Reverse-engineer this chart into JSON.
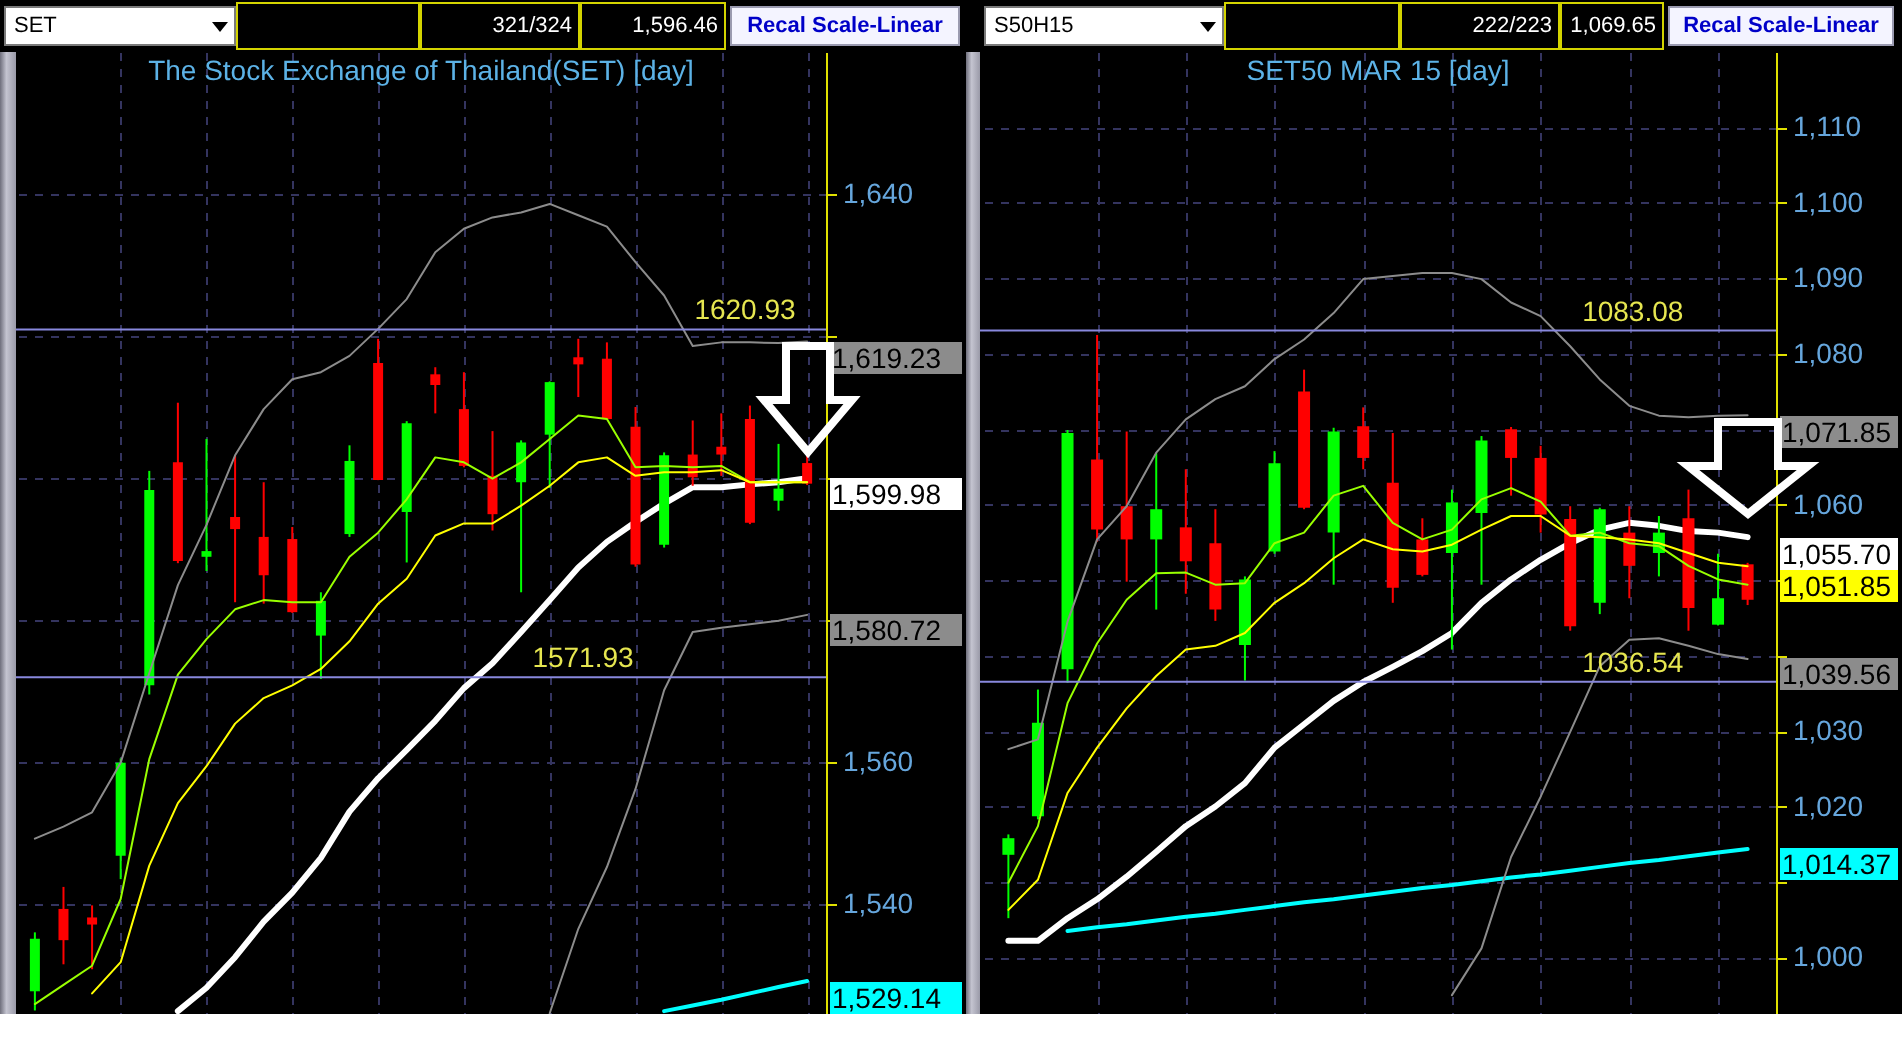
{
  "chart_data": [
    {
      "type": "candlestick",
      "title": "The Stock Exchange of Thailand(SET) [day]",
      "annotations": [
        "SET",
        "321/324",
        "1,596.46",
        "Recal Scale-Linear"
      ],
      "categories": [
        null,
        null,
        null,
        null,
        null,
        null,
        null,
        null,
        null,
        null,
        null,
        null,
        null,
        null,
        null,
        null,
        null,
        null,
        null,
        null,
        null,
        null,
        null,
        null,
        null,
        null,
        null,
        null
      ],
      "ohlc": [
        [
          1527.7,
          1536.0,
          1525.0,
          1535.1
        ],
        [
          1539.3,
          1542.4,
          1531.5,
          1534.9
        ],
        [
          1538.1,
          1539.8,
          1530.8,
          1537.1
        ],
        [
          1546.8,
          1560.5,
          1543.5,
          1559.9
        ],
        [
          1570.8,
          1601.0,
          1569.5,
          1598.3
        ],
        [
          1602.2,
          1610.6,
          1588.0,
          1588.3
        ],
        [
          1588.9,
          1605.5,
          1586.9,
          1589.7
        ],
        [
          1594.5,
          1603.2,
          1582.5,
          1592.8
        ],
        [
          1591.7,
          1599.4,
          1582.3,
          1586.3
        ],
        [
          1591.4,
          1593.1,
          1581.0,
          1581.1
        ],
        [
          1577.8,
          1583.9,
          1571.7,
          1582.7
        ],
        [
          1592.1,
          1604.6,
          1591.7,
          1602.4
        ],
        [
          1616.2,
          1619.6,
          1599.7,
          1599.7
        ],
        [
          1595.2,
          1608.0,
          1588.1,
          1607.7
        ],
        [
          1614.6,
          1615.6,
          1609.1,
          1613.1
        ],
        [
          1609.7,
          1614.9,
          1601.5,
          1601.7
        ],
        [
          1600.3,
          1606.6,
          1592.6,
          1594.9
        ],
        [
          1599.4,
          1605.3,
          1583.9,
          1605.0
        ],
        [
          1606.1,
          1613.6,
          1598.6,
          1613.5
        ],
        [
          1617.0,
          1619.6,
          1611.4,
          1616.0
        ],
        [
          1616.8,
          1619.1,
          1608.3,
          1608.3
        ],
        [
          1607.2,
          1610.0,
          1587.5,
          1587.8
        ],
        [
          1590.6,
          1603.6,
          1590.2,
          1603.2
        ],
        [
          1603.3,
          1608.1,
          1598.9,
          1600.1
        ],
        [
          1604.4,
          1609.1,
          1600.3,
          1603.3
        ],
        [
          1608.3,
          1610.2,
          1593.5,
          1593.7
        ],
        [
          1596.8,
          1604.8,
          1595.4,
          1598.5
        ],
        [
          1602.1,
          1603.2,
          1599.0,
          1599.2
        ]
      ],
      "colors": [
        "#00ff00",
        "#ff0000",
        "#ff0000",
        "#00ff00",
        "#00ff00",
        "#ff0000",
        "#00ff00",
        "#ff0000",
        "#ff0000",
        "#ff0000",
        "#00ff00",
        "#00ff00",
        "#ff0000",
        "#00ff00",
        "#ff0000",
        "#ff0000",
        "#ff0000",
        "#00ff00",
        "#00ff00",
        "#ff0000",
        "#ff0000",
        "#ff0000",
        "#00ff00",
        "#ff0000",
        "#ff0000",
        "#ff0000",
        "#00ff00",
        "#ff0000"
      ],
      "series": [
        {
          "type": "line",
          "color": "#8c8c8c",
          "values": [
            1549.2,
            1550.9,
            1552.9,
            1559.9,
            1572.5,
            1584.9,
            1593.4,
            1603.2,
            1609.7,
            1613.9,
            1614.9,
            1617.2,
            1621.0,
            1625.2,
            1631.8,
            1635.1,
            1636.7,
            1637.4,
            1638.6,
            1637.0,
            1635.4,
            1630.4,
            1625.7,
            1618.6,
            1619.1,
            1619.1,
            1619.0,
            1619.23
          ],
          "value_labels": [
            null,
            null,
            null,
            null,
            null,
            null,
            null,
            null,
            null,
            null,
            null,
            null,
            null,
            null,
            null,
            null,
            null,
            null,
            null,
            null,
            null,
            null,
            null,
            null,
            null,
            null,
            null,
            "1,619.23"
          ]
        },
        {
          "type": "line",
          "color": "#8c8c8c",
          "values": [
            null,
            null,
            null,
            null,
            null,
            null,
            null,
            null,
            null,
            null,
            null,
            null,
            null,
            null,
            null,
            null,
            null,
            null,
            1524.6,
            1536.5,
            1545.2,
            1556.2,
            1570.1,
            1578.3,
            1578.9,
            1579.4,
            1579.9,
            1580.72
          ],
          "value_labels": [
            null,
            null,
            null,
            null,
            null,
            null,
            null,
            null,
            null,
            null,
            null,
            null,
            null,
            null,
            null,
            null,
            null,
            null,
            null,
            null,
            null,
            null,
            null,
            null,
            null,
            null,
            null,
            "1,580.72"
          ]
        },
        {
          "type": "line",
          "color": "#99ff00",
          "values": [
            1525.9,
            1528.6,
            1531.3,
            1540.7,
            1560.4,
            1572.3,
            1577.3,
            1581.5,
            1582.8,
            1582.5,
            1582.5,
            1588.9,
            1592.3,
            1597.0,
            1602.9,
            1602.2,
            1599.9,
            1602.2,
            1605.5,
            1608.8,
            1608.3,
            1601.5,
            1601.7,
            1601.5,
            1601.7,
            1599.4,
            1599.4,
            1599.4
          ]
        },
        {
          "type": "line",
          "color": "#ffff00",
          "values": [
            null,
            null,
            1527.4,
            1531.8,
            1545.4,
            1554.2,
            1559.4,
            1565.4,
            1569.0,
            1570.8,
            1573.1,
            1577.0,
            1582.3,
            1585.8,
            1591.9,
            1593.6,
            1593.6,
            1596.1,
            1598.9,
            1602.2,
            1602.9,
            1600.3,
            1600.8,
            1600.8,
            1601.1,
            1599.4,
            1599.4,
            1599.4
          ]
        },
        {
          "type": "line",
          "color": "#ffffff",
          "values": [
            null,
            null,
            null,
            null,
            null,
            1524.9,
            1528.2,
            1532.5,
            1537.5,
            1541.6,
            1546.5,
            1553.0,
            1557.7,
            1561.7,
            1565.8,
            1570.4,
            1573.9,
            1578.3,
            1582.8,
            1587.4,
            1591.0,
            1593.8,
            1596.4,
            1598.7,
            1598.7,
            1599.1,
            1599.4,
            1599.98
          ],
          "value_labels": [
            null,
            null,
            null,
            null,
            null,
            null,
            null,
            null,
            null,
            null,
            null,
            null,
            null,
            null,
            null,
            null,
            null,
            null,
            null,
            null,
            null,
            null,
            null,
            null,
            null,
            null,
            null,
            "1,599.98"
          ]
        },
        {
          "type": "line",
          "color": "#00ffff",
          "values": [
            null,
            null,
            null,
            null,
            null,
            null,
            null,
            null,
            null,
            null,
            null,
            null,
            null,
            null,
            null,
            null,
            null,
            null,
            null,
            null,
            null,
            null,
            1524.9,
            1525.7,
            1526.5,
            1527.4,
            1528.3,
            1529.14
          ],
          "value_labels": [
            null,
            null,
            null,
            null,
            null,
            null,
            null,
            null,
            null,
            null,
            null,
            null,
            null,
            null,
            null,
            null,
            null,
            null,
            null,
            null,
            null,
            null,
            null,
            null,
            null,
            null,
            null,
            "1,529.14"
          ]
        }
      ],
      "ylim": [
        1524.5,
        1660
      ],
      "yticks": [
        {
          "value": 1540,
          "label": "1,540"
        },
        {
          "value": 1560,
          "label": "1,560"
        },
        {
          "value": 1580,
          "label": null
        },
        {
          "value": 1600,
          "label": null
        },
        {
          "value": 1620,
          "label": null
        },
        {
          "value": 1640,
          "label": "1,640"
        }
      ],
      "grid": true,
      "ref_lines": [
        {
          "axis": "y",
          "value": 1620.93,
          "label": "1620.93",
          "color": "#8888dd"
        },
        {
          "axis": "y",
          "value": 1571.93,
          "label": "1571.93",
          "color": "#8888dd"
        }
      ]
    },
    {
      "type": "candlestick",
      "title": "SET50 MAR 15  [day]",
      "annotations": [
        "S50H15",
        "222/223",
        "1,069.65",
        "Recal Scale-Linear"
      ],
      "categories": [
        null,
        null,
        null,
        null,
        null,
        null,
        null,
        null,
        null,
        null,
        null,
        null,
        null,
        null,
        null,
        null,
        null,
        null,
        null,
        null,
        null,
        null,
        null,
        null,
        null,
        null
      ],
      "ohlc": [
        [
          1013.6,
          1016.3,
          1005.2,
          1015.8
        ],
        [
          1018.7,
          1035.5,
          1018.3,
          1031.1
        ],
        [
          1038.2,
          1069.9,
          1036.4,
          1069.5
        ],
        [
          1066.0,
          1082.5,
          1055.1,
          1056.7
        ],
        [
          1059.8,
          1069.7,
          1049.8,
          1055.4
        ],
        [
          1055.4,
          1066.9,
          1046.1,
          1059.4
        ],
        [
          1057.0,
          1064.7,
          1048.2,
          1052.5
        ],
        [
          1054.9,
          1059.4,
          1044.6,
          1046.1
        ],
        [
          1041.4,
          1050.5,
          1036.7,
          1050.1
        ],
        [
          1053.8,
          1067.1,
          1053.5,
          1065.5
        ],
        [
          1075.0,
          1077.9,
          1059.4,
          1059.6
        ],
        [
          1056.3,
          1070.2,
          1049.4,
          1069.7
        ],
        [
          1070.4,
          1072.9,
          1064.7,
          1066.2
        ],
        [
          1062.9,
          1069.5,
          1047.0,
          1049.0
        ],
        [
          1055.4,
          1058.2,
          1050.5,
          1050.7
        ],
        [
          1053.6,
          1062.0,
          1040.8,
          1060.3
        ],
        [
          1058.9,
          1069.1,
          1049.4,
          1068.5
        ],
        [
          1070.0,
          1070.3,
          1061.2,
          1066.2
        ],
        [
          1066.2,
          1067.8,
          1056.3,
          1058.7
        ],
        [
          1058.1,
          1059.8,
          1043.3,
          1043.9
        ],
        [
          1047.0,
          1059.6,
          1045.5,
          1059.4
        ],
        [
          1056.3,
          1059.8,
          1047.6,
          1051.9
        ],
        [
          1053.6,
          1058.5,
          1050.5,
          1056.3
        ],
        [
          1058.2,
          1062.0,
          1043.3,
          1046.3
        ],
        [
          1044.1,
          1053.5,
          1044.0,
          1047.6
        ],
        [
          1052.1,
          1052.3,
          1046.7,
          1047.4
        ]
      ],
      "colors": [
        "#00ff00",
        "#00ff00",
        "#00ff00",
        "#ff0000",
        "#ff0000",
        "#00ff00",
        "#ff0000",
        "#ff0000",
        "#00ff00",
        "#00ff00",
        "#ff0000",
        "#00ff00",
        "#ff0000",
        "#ff0000",
        "#ff0000",
        "#00ff00",
        "#00ff00",
        "#ff0000",
        "#ff0000",
        "#ff0000",
        "#00ff00",
        "#ff0000",
        "#00ff00",
        "#ff0000",
        "#00ff00",
        "#ff0000"
      ],
      "series": [
        {
          "type": "line",
          "color": "#8c8c8c",
          "values": [
            1027.6,
            1028.9,
            1044.5,
            1055.4,
            1059.8,
            1066.9,
            1071.3,
            1074.0,
            1075.7,
            1079.3,
            1081.9,
            1085.4,
            1089.9,
            1090.3,
            1090.7,
            1090.7,
            1089.9,
            1086.8,
            1085.0,
            1081.0,
            1076.6,
            1073.1,
            1071.8,
            1071.6,
            1071.8,
            1071.85
          ],
          "value_labels": [
            null,
            null,
            null,
            null,
            null,
            null,
            null,
            null,
            null,
            null,
            null,
            null,
            null,
            null,
            null,
            null,
            null,
            null,
            null,
            null,
            null,
            null,
            null,
            null,
            null,
            "1,071.85"
          ]
        },
        {
          "type": "line",
          "color": "#8c8c8c",
          "values": [
            null,
            null,
            null,
            null,
            null,
            null,
            null,
            null,
            null,
            null,
            null,
            null,
            null,
            null,
            null,
            995.0,
            1001.2,
            1013.3,
            1021.3,
            1029.9,
            1038.6,
            1042.1,
            1042.3,
            1041.3,
            1040.2,
            1039.56
          ],
          "value_labels": [
            null,
            null,
            null,
            null,
            null,
            null,
            null,
            null,
            null,
            null,
            null,
            null,
            null,
            null,
            null,
            null,
            null,
            null,
            null,
            null,
            null,
            null,
            null,
            null,
            null,
            "1,039.56"
          ]
        },
        {
          "type": "line",
          "color": "#99ff00",
          "values": [
            1009.9,
            1017.4,
            1033.7,
            1041.6,
            1047.4,
            1050.9,
            1051.0,
            1049.4,
            1049.6,
            1054.9,
            1056.3,
            1061.2,
            1062.5,
            1057.6,
            1055.4,
            1056.7,
            1060.7,
            1062.2,
            1060.4,
            1055.9,
            1056.3,
            1054.9,
            1054.5,
            1051.9,
            1050.1,
            1049.4
          ]
        },
        {
          "type": "line",
          "color": "#ffff00",
          "values": [
            1006.3,
            1010.3,
            1021.8,
            1027.8,
            1033.0,
            1037.3,
            1040.8,
            1041.3,
            1043.0,
            1047.0,
            1049.6,
            1052.9,
            1055.4,
            1054.1,
            1053.8,
            1054.7,
            1056.7,
            1058.5,
            1058.5,
            1055.9,
            1055.7,
            1055.4,
            1054.9,
            1053.6,
            1052.3,
            1051.85
          ],
          "value_labels": [
            null,
            null,
            null,
            null,
            null,
            null,
            null,
            null,
            null,
            null,
            null,
            null,
            null,
            null,
            null,
            null,
            null,
            null,
            null,
            null,
            null,
            null,
            null,
            null,
            null,
            "1,051.85"
          ]
        },
        {
          "type": "line",
          "color": "#ffffff",
          "values": [
            1002.2,
            1002.2,
            1005.2,
            1007.7,
            1010.7,
            1014.0,
            1017.4,
            1020.0,
            1023.1,
            1027.8,
            1030.9,
            1034.0,
            1036.5,
            1038.5,
            1040.6,
            1043.0,
            1047.0,
            1050.1,
            1052.7,
            1054.9,
            1056.7,
            1057.6,
            1057.2,
            1056.5,
            1056.3,
            1055.7
          ],
          "value_labels": [
            null,
            null,
            null,
            null,
            null,
            null,
            null,
            null,
            null,
            null,
            null,
            null,
            null,
            null,
            null,
            null,
            null,
            null,
            null,
            null,
            null,
            null,
            null,
            null,
            null,
            "1,055.70"
          ]
        },
        {
          "type": "line",
          "color": "#00ffff",
          "values": [
            null,
            null,
            1003.5,
            1004.0,
            1004.4,
            1004.9,
            1005.4,
            1005.8,
            1006.3,
            1006.8,
            1007.3,
            1007.7,
            1008.2,
            1008.7,
            1009.2,
            1009.6,
            1010.1,
            1010.6,
            1011.0,
            1011.5,
            1012.0,
            1012.5,
            1012.9,
            1013.4,
            1013.9,
            1014.37
          ],
          "value_labels": [
            null,
            null,
            null,
            null,
            null,
            null,
            null,
            null,
            null,
            null,
            null,
            null,
            null,
            null,
            null,
            null,
            null,
            null,
            null,
            null,
            null,
            null,
            null,
            null,
            null,
            "1,014.37"
          ]
        }
      ],
      "ylim": [
        992.5,
        1120
      ],
      "yticks": [
        {
          "value": 1000,
          "label": "1,000"
        },
        {
          "value": 1010,
          "label": null
        },
        {
          "value": 1020,
          "label": "1,020"
        },
        {
          "value": 1030,
          "label": "1,030"
        },
        {
          "value": 1040,
          "label": null
        },
        {
          "value": 1050,
          "label": null
        },
        {
          "value": 1060,
          "label": "1,060"
        },
        {
          "value": 1070,
          "label": null
        },
        {
          "value": 1080,
          "label": "1,080"
        },
        {
          "value": 1090,
          "label": "1,090"
        },
        {
          "value": 1100,
          "label": "1,100"
        },
        {
          "value": 1110,
          "label": "1,110"
        }
      ],
      "grid": true,
      "ref_lines": [
        {
          "axis": "y",
          "value": 1083.08,
          "label": "1083.08",
          "color": "#8888dd"
        },
        {
          "axis": "y",
          "value": 1036.54,
          "label": "1036.54",
          "color": "#8888dd"
        }
      ]
    }
  ]
}
